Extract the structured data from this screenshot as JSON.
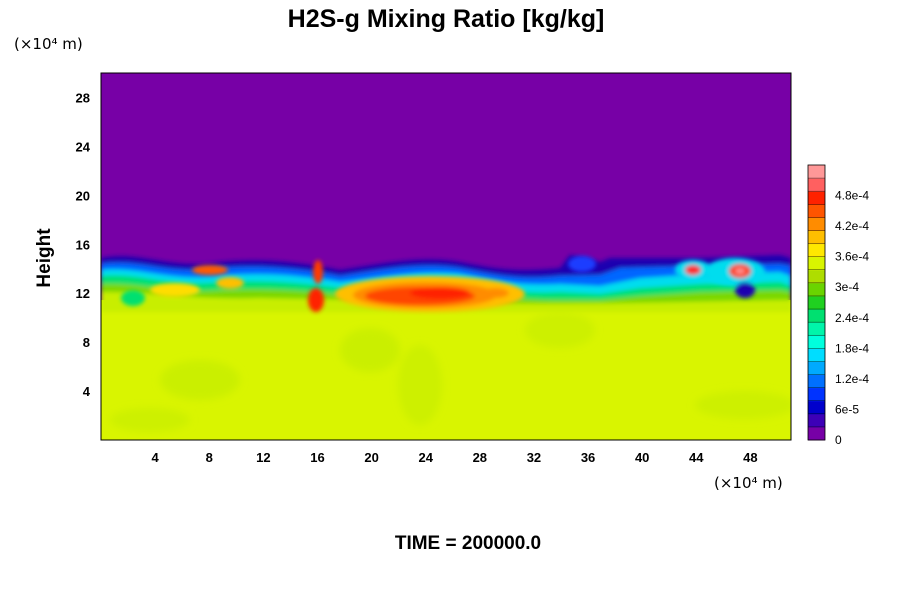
{
  "chart_data": {
    "type": "heatmap",
    "title": "H2S-g Mixing Ratio [kg/kg]",
    "ylabel": "Height",
    "xlabel": "",
    "x_unit": "(×10⁴ m)",
    "y_unit": "(×10⁴ m)",
    "x_ticks": [
      "4",
      "8",
      "12",
      "16",
      "20",
      "24",
      "28",
      "32",
      "36",
      "40",
      "44",
      "48"
    ],
    "y_ticks": [
      "4",
      "8",
      "12",
      "16",
      "20",
      "24",
      "28"
    ],
    "xlim": [
      0,
      51
    ],
    "ylim": [
      0,
      30
    ],
    "grid": false,
    "colorbar": {
      "placement": "right",
      "tick_labels": [
        "0",
        "6e-5",
        "1.2e-4",
        "1.8e-4",
        "2.4e-4",
        "3e-4",
        "3.6e-4",
        "4.2e-4",
        "4.8e-4"
      ],
      "min": 0,
      "max": 0.00054,
      "colors": [
        "#7700a6",
        "#3d00b7",
        "#0000cc",
        "#0033ff",
        "#0070ff",
        "#00aaff",
        "#00ddff",
        "#00ffdd",
        "#00f5aa",
        "#00e070",
        "#20d020",
        "#6ad400",
        "#aedd00",
        "#d9f500",
        "#ffe800",
        "#ffbf00",
        "#ff8c00",
        "#ff5500",
        "#ff2200",
        "#ff6060",
        "#ff9898"
      ]
    },
    "regions": [
      {
        "label": "background above ~14.5",
        "value": 0,
        "y_range": [
          14.5,
          30
        ]
      },
      {
        "label": "lower layer",
        "value": 0.00036,
        "y_range": [
          0,
          11
        ]
      },
      {
        "label": "mixing layer",
        "value_range": [
          6e-05,
          0.00045
        ],
        "y_range": [
          10,
          15
        ]
      },
      {
        "label": "maximum near x≈24-26, y≈12",
        "value": 0.00048
      }
    ]
  },
  "footer": {
    "time_label": "TIME = 200000.0"
  }
}
